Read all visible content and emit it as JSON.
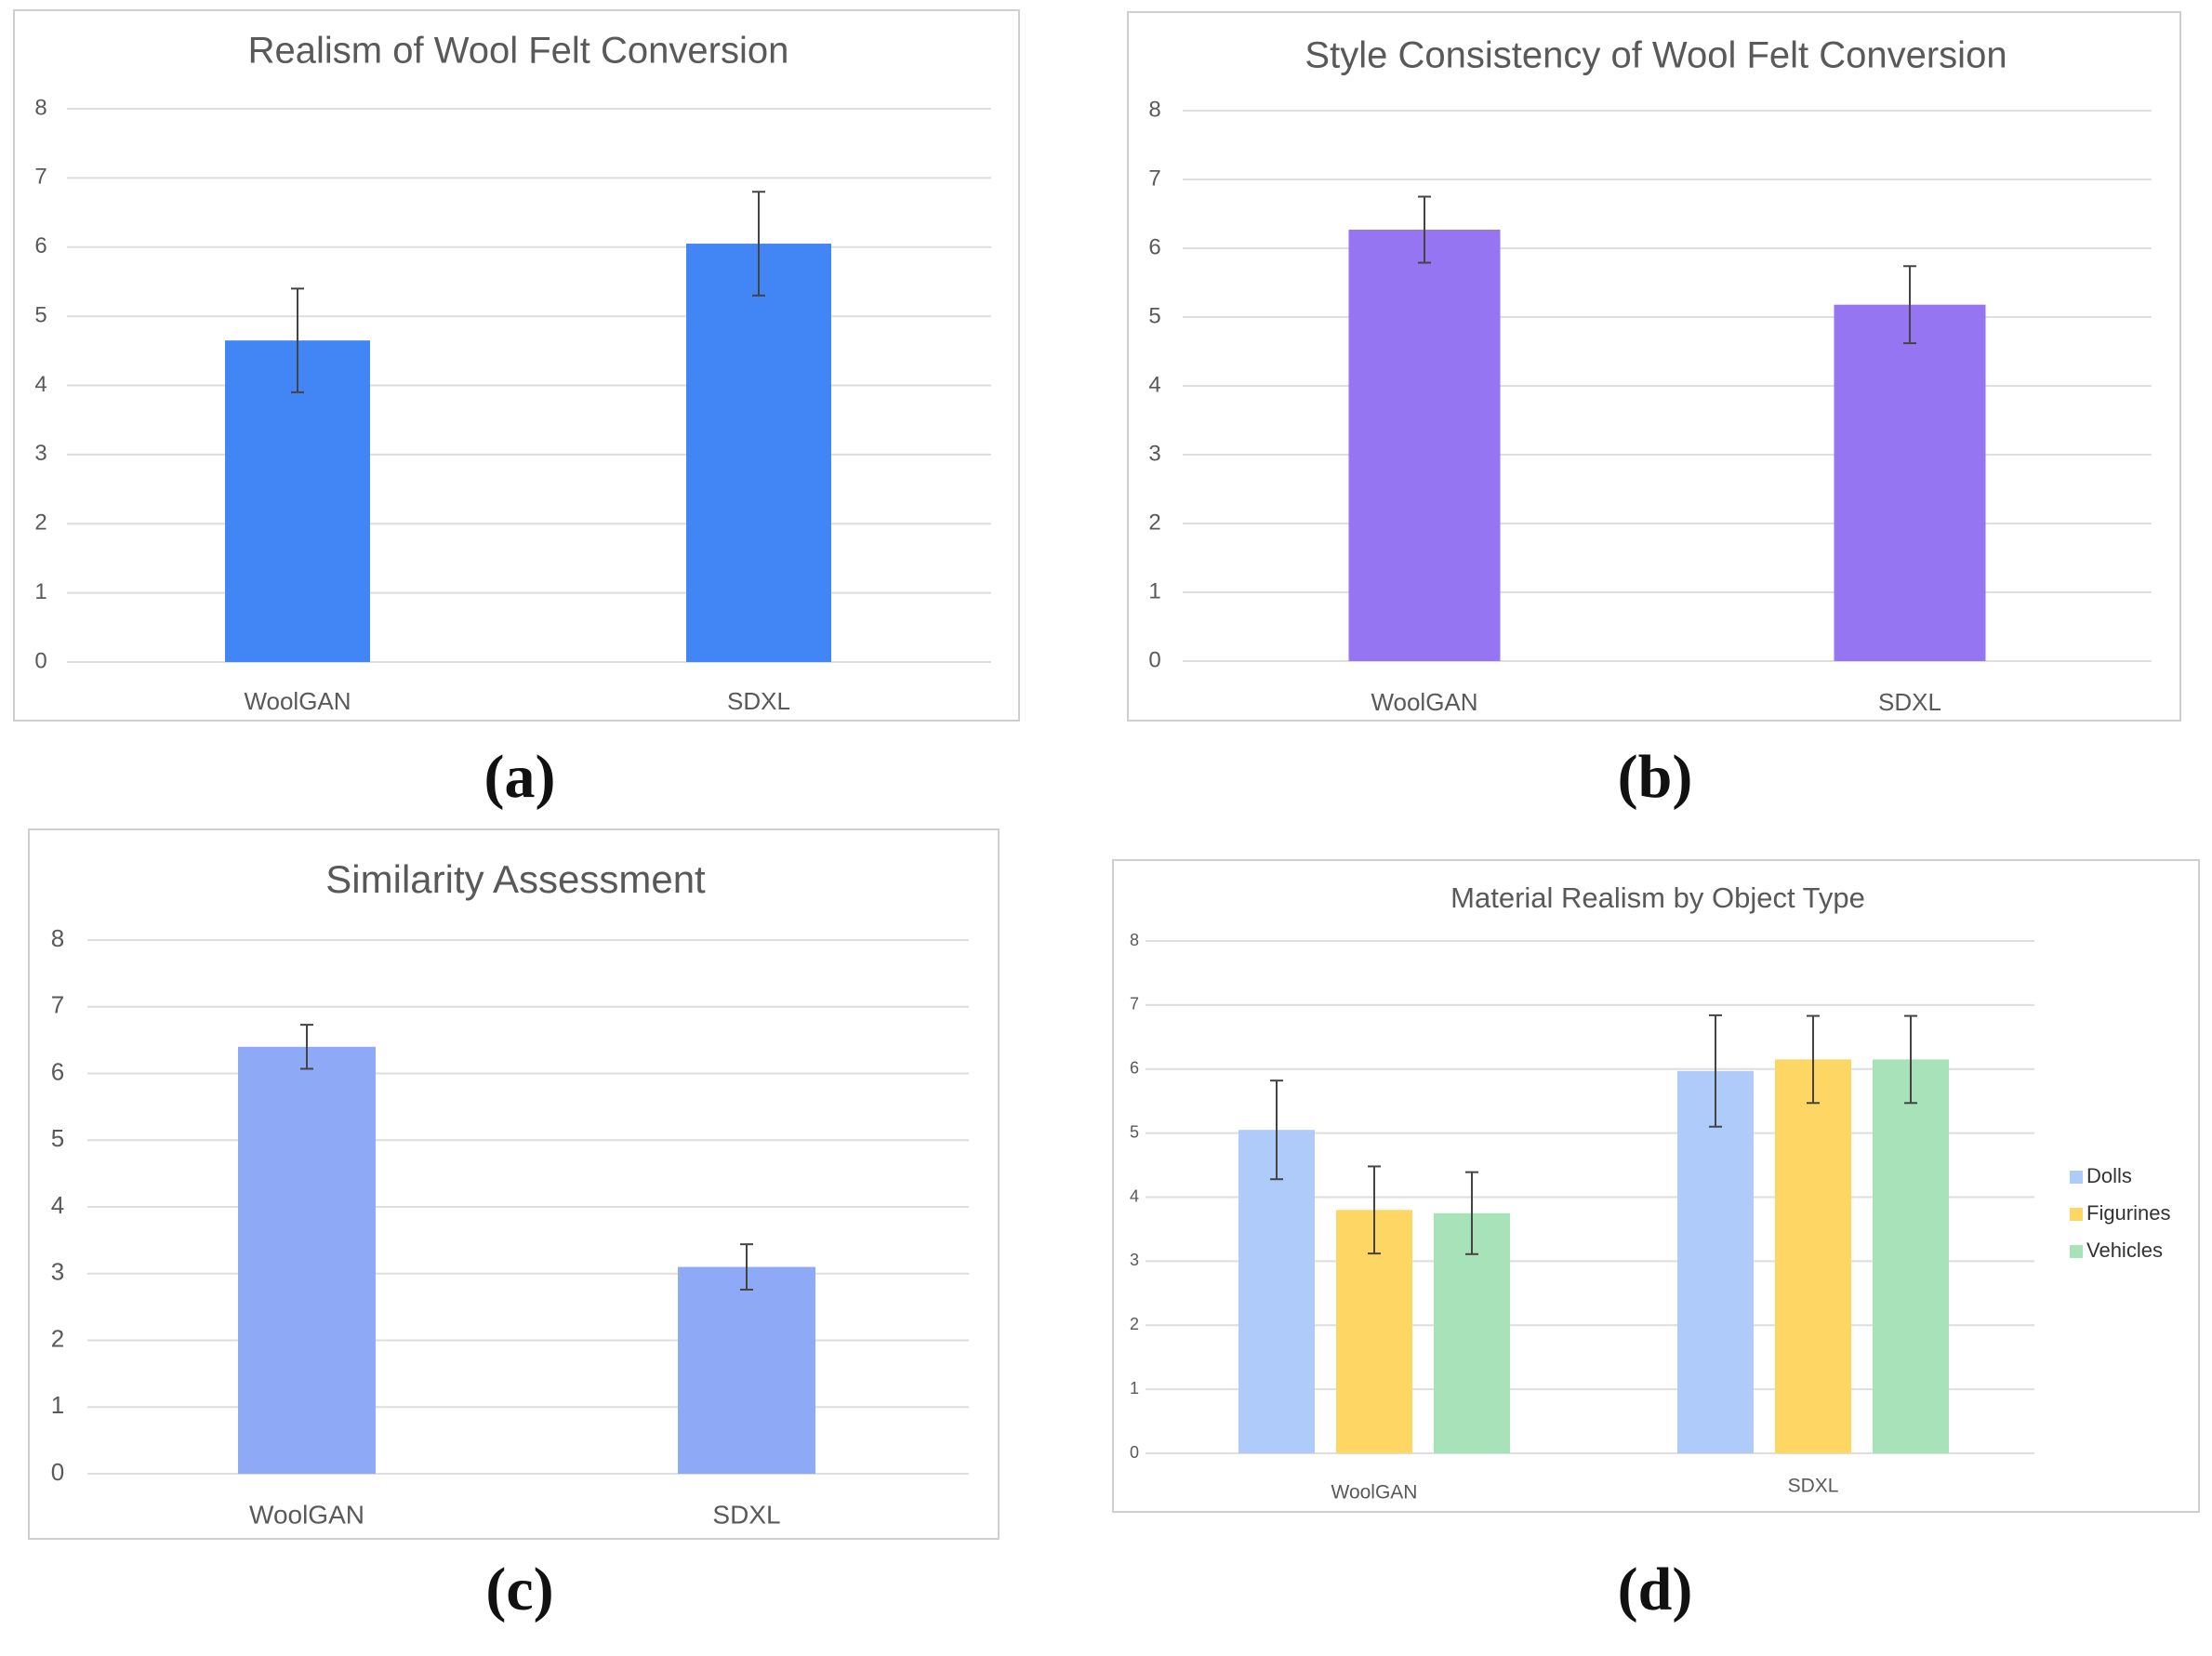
{
  "chart_data": [
    {
      "type": "bar",
      "title": "Realism of Wool Felt Conversion",
      "caption": "(a)",
      "categories": [
        "WoolGAN",
        "SDXL"
      ],
      "series": [
        {
          "name": "Realism",
          "values": [
            4.65,
            6.05
          ],
          "errors": [
            0.75,
            0.75
          ],
          "color": "#4285f4"
        }
      ],
      "ylim": [
        0,
        8
      ],
      "yticks": [
        "0",
        "1",
        "2",
        "3",
        "4",
        "5",
        "6",
        "7",
        "8"
      ],
      "xlabel": "",
      "ylabel": "",
      "grid": true,
      "legend": "none"
    },
    {
      "type": "bar",
      "title": "Style Consistency of Wool Felt Conversion",
      "caption": "(b)",
      "categories": [
        "WoolGAN",
        "SDXL"
      ],
      "series": [
        {
          "name": "Style Consistency",
          "values": [
            6.27,
            5.18
          ],
          "errors": [
            0.48,
            0.56
          ],
          "color": "#9575f2"
        }
      ],
      "ylim": [
        0,
        8
      ],
      "yticks": [
        "0",
        "1",
        "2",
        "3",
        "4",
        "5",
        "6",
        "7",
        "8"
      ],
      "xlabel": "",
      "ylabel": "",
      "grid": true,
      "legend": "none"
    },
    {
      "type": "bar",
      "title": "Similarity Assessment",
      "caption": "(c)",
      "categories": [
        "WoolGAN",
        "SDXL"
      ],
      "series": [
        {
          "name": "Similarity",
          "values": [
            6.4,
            3.1
          ],
          "errors": [
            0.33,
            0.34
          ],
          "color": "#8eaaf7"
        }
      ],
      "ylim": [
        0,
        8
      ],
      "yticks": [
        "0",
        "1",
        "2",
        "3",
        "4",
        "5",
        "6",
        "7",
        "8"
      ],
      "xlabel": "",
      "ylabel": "",
      "grid": true,
      "legend": "none"
    },
    {
      "type": "bar",
      "title": "Material Realism by Object Type",
      "caption": "(d)",
      "categories": [
        "WoolGAN",
        "SDXL"
      ],
      "series": [
        {
          "name": "Dolls",
          "values": [
            5.05,
            5.97
          ],
          "errors": [
            0.77,
            0.87
          ],
          "color": "#aecbfa"
        },
        {
          "name": "Figurines",
          "values": [
            3.8,
            6.15
          ],
          "errors": [
            0.68,
            0.68
          ],
          "color": "#fdd663"
        },
        {
          "name": "Vehicles",
          "values": [
            3.75,
            6.15
          ],
          "errors": [
            0.64,
            0.68
          ],
          "color": "#a8e2b8"
        }
      ],
      "ylim": [
        0,
        8
      ],
      "yticks": [
        "0",
        "1",
        "2",
        "3",
        "4",
        "5",
        "6",
        "7",
        "8"
      ],
      "xlabel": "",
      "ylabel": "",
      "grid": true,
      "legend": "right"
    }
  ]
}
